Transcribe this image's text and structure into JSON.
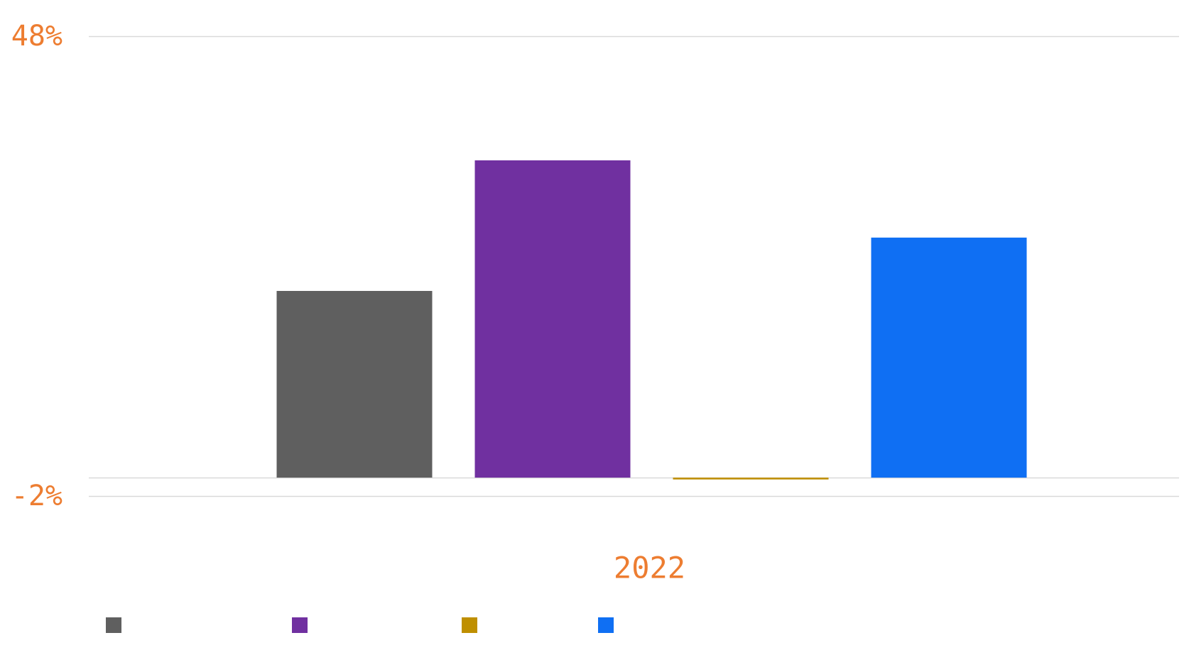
{
  "chart_data": {
    "type": "bar",
    "categories": [
      "2022"
    ],
    "series": [
      {
        "color": "#5f5f5f",
        "values": [
          20.3
        ]
      },
      {
        "color": "#7030a0",
        "values": [
          34.5
        ]
      },
      {
        "color": "#bf8f00",
        "values": [
          -0.2
        ]
      },
      {
        "color": "#0f6ff3",
        "values": [
          26.1
        ]
      }
    ],
    "yticks": [
      "48%",
      "-2%"
    ],
    "ytick_values": [
      48,
      -2
    ],
    "ylim": [
      -2,
      48
    ],
    "title": "",
    "xlabel": "",
    "ylabel": "",
    "grid": true,
    "legend": "bottom-left",
    "colors": {
      "tick_text": "#ed7d31",
      "grid": "#d9d9d9",
      "zero_line": "#d9d9d9"
    }
  }
}
